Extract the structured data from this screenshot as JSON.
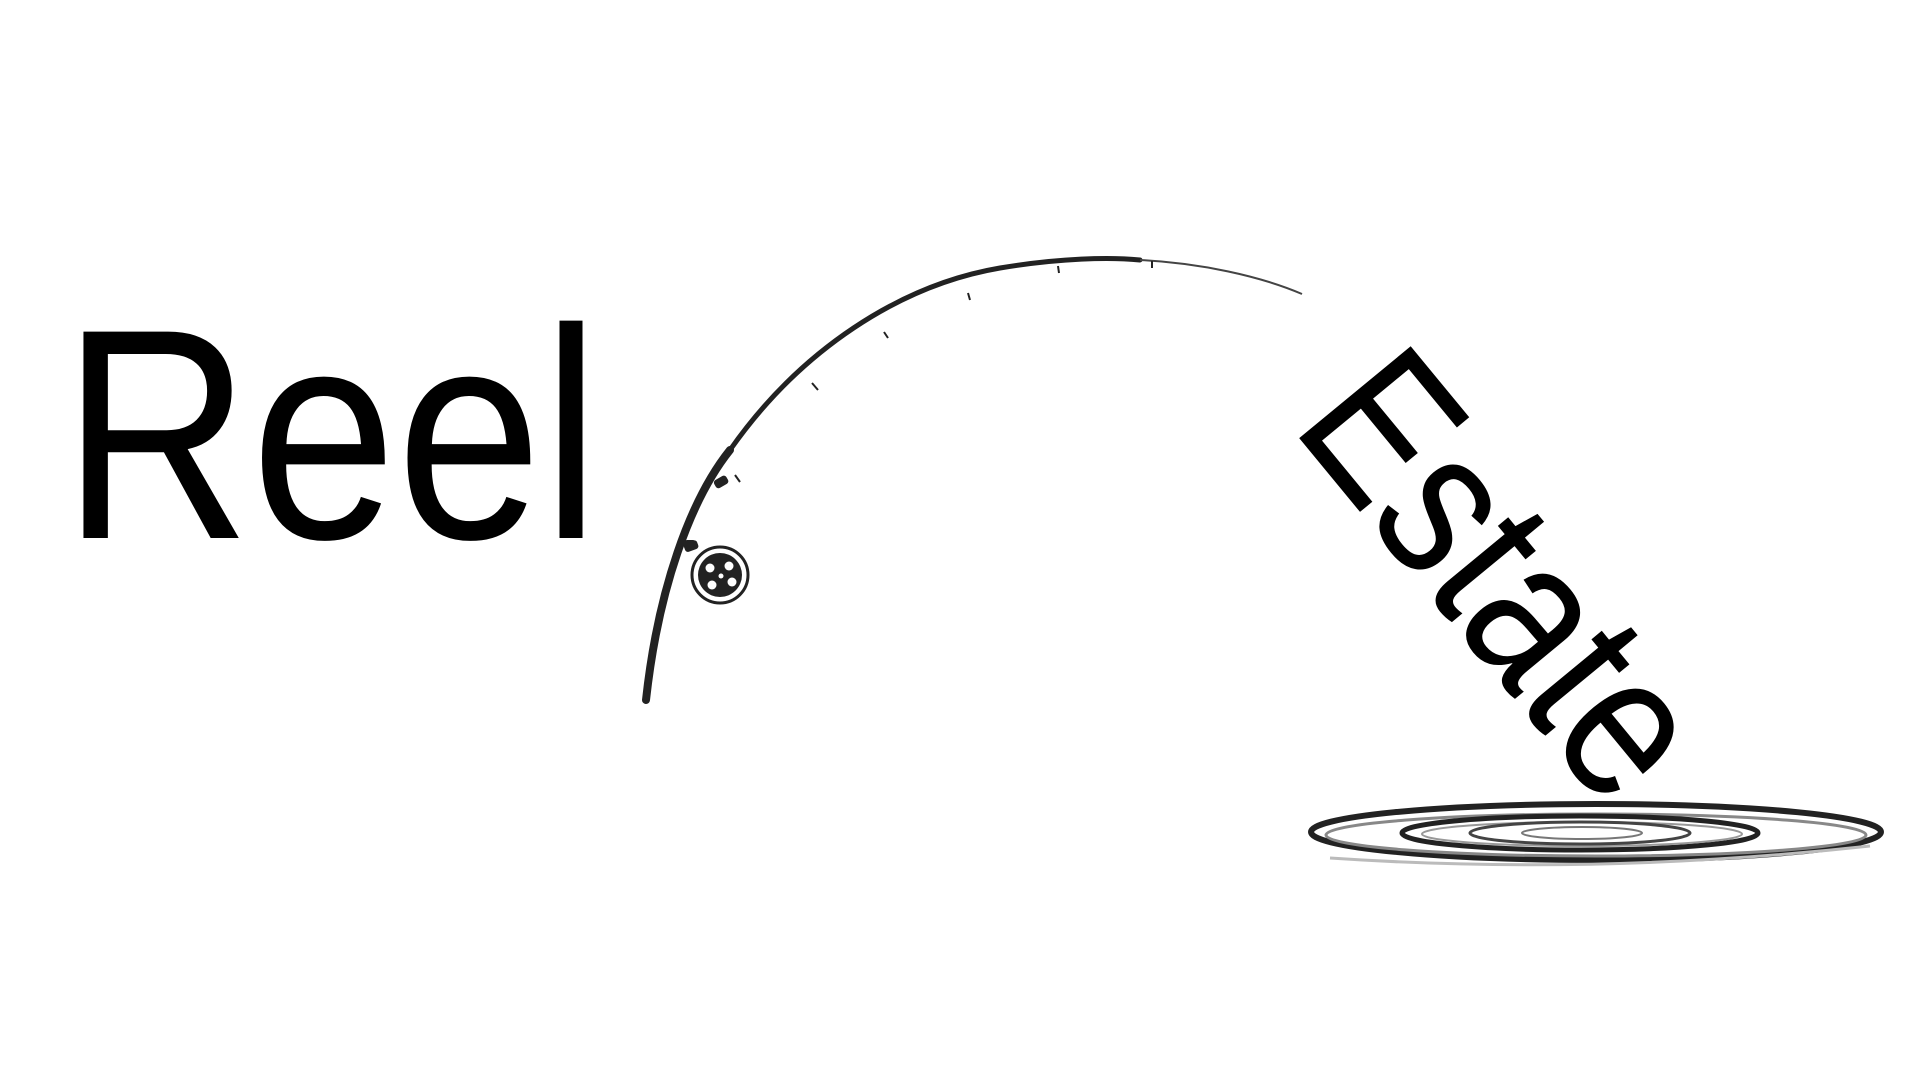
{
  "logo": {
    "word1": "Reel",
    "word2": "Estate"
  }
}
